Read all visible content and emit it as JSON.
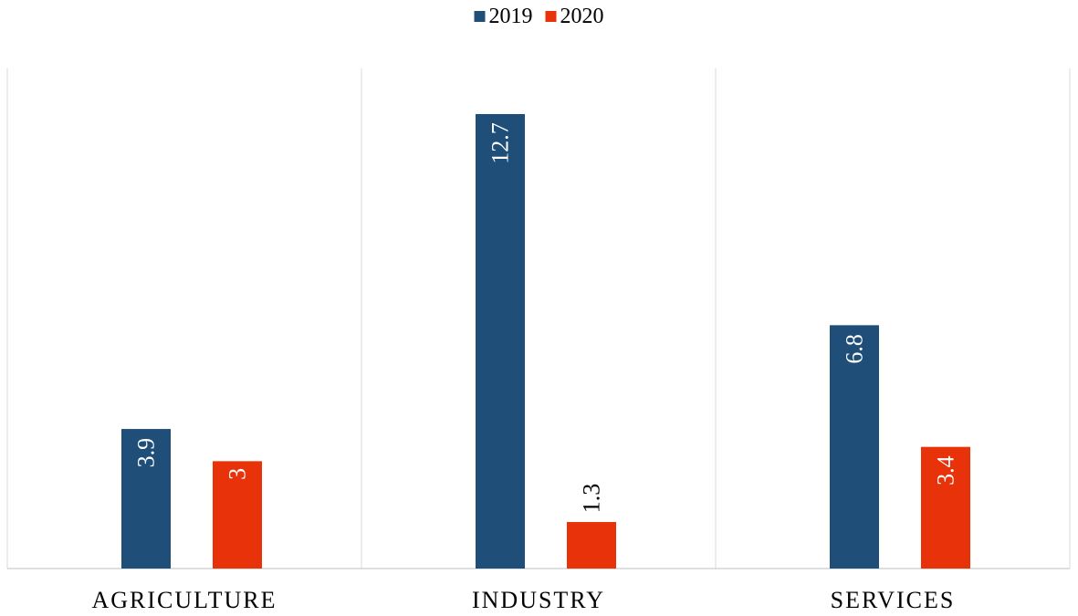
{
  "chart_data": {
    "type": "bar",
    "categories": [
      "AGRICULTURE",
      "INDUSTRY",
      "SERVICES"
    ],
    "series": [
      {
        "name": "2019",
        "values": [
          3.9,
          12.7,
          6.8
        ],
        "color": "#1f4e79"
      },
      {
        "name": "2020",
        "values": [
          3,
          1.3,
          3.4
        ],
        "color": "#e8320a"
      }
    ],
    "value_labels": {
      "2019": [
        "3.9",
        "12.7",
        "6.8"
      ],
      "2020": [
        "3",
        "1.3",
        "3.4"
      ]
    },
    "title": "",
    "xlabel": "",
    "ylabel": "",
    "ylim": [
      0,
      14
    ],
    "grid": false,
    "legend_position": "top-center",
    "data_label_orientation": "vertical"
  }
}
